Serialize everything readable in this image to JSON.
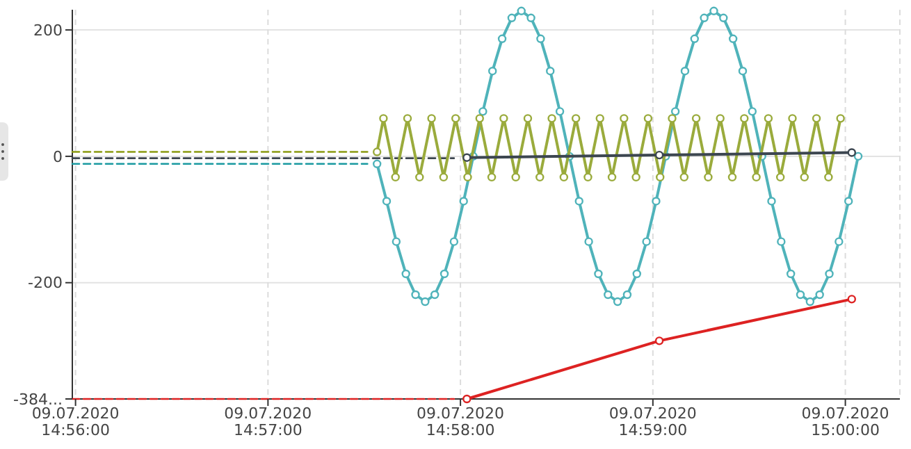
{
  "chart_data": {
    "type": "line",
    "xlim": [
      "2020-07-09T14:55:59",
      "2020-07-09T15:00:17"
    ],
    "ylim": [
      -384,
      232
    ],
    "xticks": [
      {
        "value": "2020-07-09T14:56",
        "label": "09.07.2020\n14:56:00"
      },
      {
        "value": "2020-07-09T14:57",
        "label": "09.07.2020\n14:57:00"
      },
      {
        "value": "2020-07-09T14:58",
        "label": "09.07.2020\n14:58:00"
      },
      {
        "value": "2020-07-09T14:59",
        "label": "09.07.2020\n14:59:00"
      },
      {
        "value": "2020-07-09T15:00",
        "label": "09.07.2020\n15:00:00"
      }
    ],
    "yticks": [
      200,
      0,
      -200,
      {
        "value": -384,
        "label": "-384..."
      }
    ],
    "grid": true,
    "series": [
      {
        "color": "#8a9a10",
        "line_style": "dashed",
        "marker": "none",
        "x": [
          "2020-07-09T14:55:59",
          "2020-07-09T14:57:31"
        ],
        "values": [
          7,
          7
        ]
      },
      {
        "color": "#3c4650",
        "line_style": "dashed",
        "marker": "none",
        "x": [
          "2020-07-09T14:55:59",
          "2020-07-09T14:57:58"
        ],
        "values": [
          -3,
          -3
        ]
      },
      {
        "color": "#1a9aa0",
        "line_style": "dashed",
        "marker": "none",
        "x": [
          "2020-07-09T14:55:59",
          "2020-07-09T14:57:31"
        ],
        "values": [
          -12,
          -12
        ]
      },
      {
        "color": "#dd2222",
        "line_style": "dashed",
        "marker": "none",
        "x": [
          "2020-07-09T14:55:59",
          "2020-07-09T14:57:58"
        ],
        "values": [
          -384,
          -384
        ]
      },
      {
        "color": "#4fb3ba",
        "line_style": "solid",
        "marker": "circle",
        "x": [
          "2020-07-09T14:57:34",
          "2020-07-09T14:57:37",
          "2020-07-09T14:57:40",
          "2020-07-09T14:57:43",
          "2020-07-09T14:57:46",
          "2020-07-09T14:57:49",
          "2020-07-09T14:57:52",
          "2020-07-09T14:57:55",
          "2020-07-09T14:57:58",
          "2020-07-09T14:58:01",
          "2020-07-09T14:58:04",
          "2020-07-09T14:58:07",
          "2020-07-09T14:58:10",
          "2020-07-09T14:58:13",
          "2020-07-09T14:58:16",
          "2020-07-09T14:58:19",
          "2020-07-09T14:58:22",
          "2020-07-09T14:58:25",
          "2020-07-09T14:58:28",
          "2020-07-09T14:58:31",
          "2020-07-09T14:58:34",
          "2020-07-09T14:58:37",
          "2020-07-09T14:58:40",
          "2020-07-09T14:58:43",
          "2020-07-09T14:58:46",
          "2020-07-09T14:58:49",
          "2020-07-09T14:58:52",
          "2020-07-09T14:58:55",
          "2020-07-09T14:58:58",
          "2020-07-09T14:59:01",
          "2020-07-09T14:59:04",
          "2020-07-09T14:59:07",
          "2020-07-09T14:59:10",
          "2020-07-09T14:59:13",
          "2020-07-09T14:59:16",
          "2020-07-09T14:59:19",
          "2020-07-09T14:59:22",
          "2020-07-09T14:59:25",
          "2020-07-09T14:59:28",
          "2020-07-09T14:59:31",
          "2020-07-09T14:59:34",
          "2020-07-09T14:59:37",
          "2020-07-09T14:59:40",
          "2020-07-09T14:59:43",
          "2020-07-09T14:59:46",
          "2020-07-09T14:59:49",
          "2020-07-09T14:59:52",
          "2020-07-09T14:59:55",
          "2020-07-09T14:59:58",
          "2020-07-09T15:00:01",
          "2020-07-09T15:00:04"
        ],
        "values": [
          -12,
          -71,
          -135,
          -186,
          -219,
          -230,
          -219,
          -186,
          -135,
          -71,
          0,
          71,
          135,
          186,
          219,
          230,
          219,
          186,
          135,
          71,
          0,
          -71,
          -135,
          -186,
          -219,
          -230,
          -219,
          -186,
          -135,
          -71,
          0,
          71,
          135,
          186,
          219,
          230,
          219,
          186,
          135,
          71,
          0,
          -71,
          -135,
          -186,
          -219,
          -230,
          -219,
          -186,
          -135,
          -71,
          0
        ]
      },
      {
        "color": "#9aab3c",
        "line_style": "solid",
        "marker": "circle",
        "x": [
          "2020-07-09T14:57:34",
          "2020-07-09T14:57:36",
          "2020-07-09T14:57:39.75",
          "2020-07-09T14:57:43.5",
          "2020-07-09T14:57:47.25",
          "2020-07-09T14:57:51",
          "2020-07-09T14:57:54.75",
          "2020-07-09T14:57:58.5",
          "2020-07-09T14:58:02.25",
          "2020-07-09T14:58:06",
          "2020-07-09T14:58:09.75",
          "2020-07-09T14:58:13.5",
          "2020-07-09T14:58:17.25",
          "2020-07-09T14:58:21",
          "2020-07-09T14:58:24.75",
          "2020-07-09T14:58:28.5",
          "2020-07-09T14:58:32.25",
          "2020-07-09T14:58:36",
          "2020-07-09T14:58:39.75",
          "2020-07-09T14:58:43.5",
          "2020-07-09T14:58:47.25",
          "2020-07-09T14:58:51",
          "2020-07-09T14:58:54.75",
          "2020-07-09T14:58:58.5",
          "2020-07-09T14:59:02.25",
          "2020-07-09T14:59:06",
          "2020-07-09T14:59:09.75",
          "2020-07-09T14:59:13.5",
          "2020-07-09T14:59:17.25",
          "2020-07-09T14:59:21",
          "2020-07-09T14:59:24.75",
          "2020-07-09T14:59:28.5",
          "2020-07-09T14:59:32.25",
          "2020-07-09T14:59:36",
          "2020-07-09T14:59:39.75",
          "2020-07-09T14:59:43.5",
          "2020-07-09T14:59:47.25",
          "2020-07-09T14:59:51",
          "2020-07-09T14:59:54.75",
          "2020-07-09T14:59:58.5"
        ],
        "values": [
          7,
          60,
          -33,
          60,
          -33,
          60,
          -33,
          60,
          -33,
          60,
          -33,
          60,
          -33,
          60,
          -33,
          60,
          -33,
          60,
          -33,
          60,
          -33,
          60,
          -33,
          60,
          -33,
          60,
          -33,
          60,
          -33,
          60,
          -33,
          60,
          -33,
          60,
          -33,
          60,
          -33,
          60,
          -33,
          60
        ]
      },
      {
        "color": "#3c4650",
        "line_style": "solid",
        "marker": "circle",
        "x": [
          "2020-07-09T14:58:02",
          "2020-07-09T14:59:02",
          "2020-07-09T15:00:02"
        ],
        "values": [
          -2,
          2,
          6
        ]
      },
      {
        "color": "#dd2222",
        "line_style": "solid",
        "marker": "circle",
        "x": [
          "2020-07-09T14:58:02",
          "2020-07-09T14:59:02",
          "2020-07-09T15:00:02"
        ],
        "values": [
          -384,
          -292,
          -226
        ]
      }
    ]
  }
}
